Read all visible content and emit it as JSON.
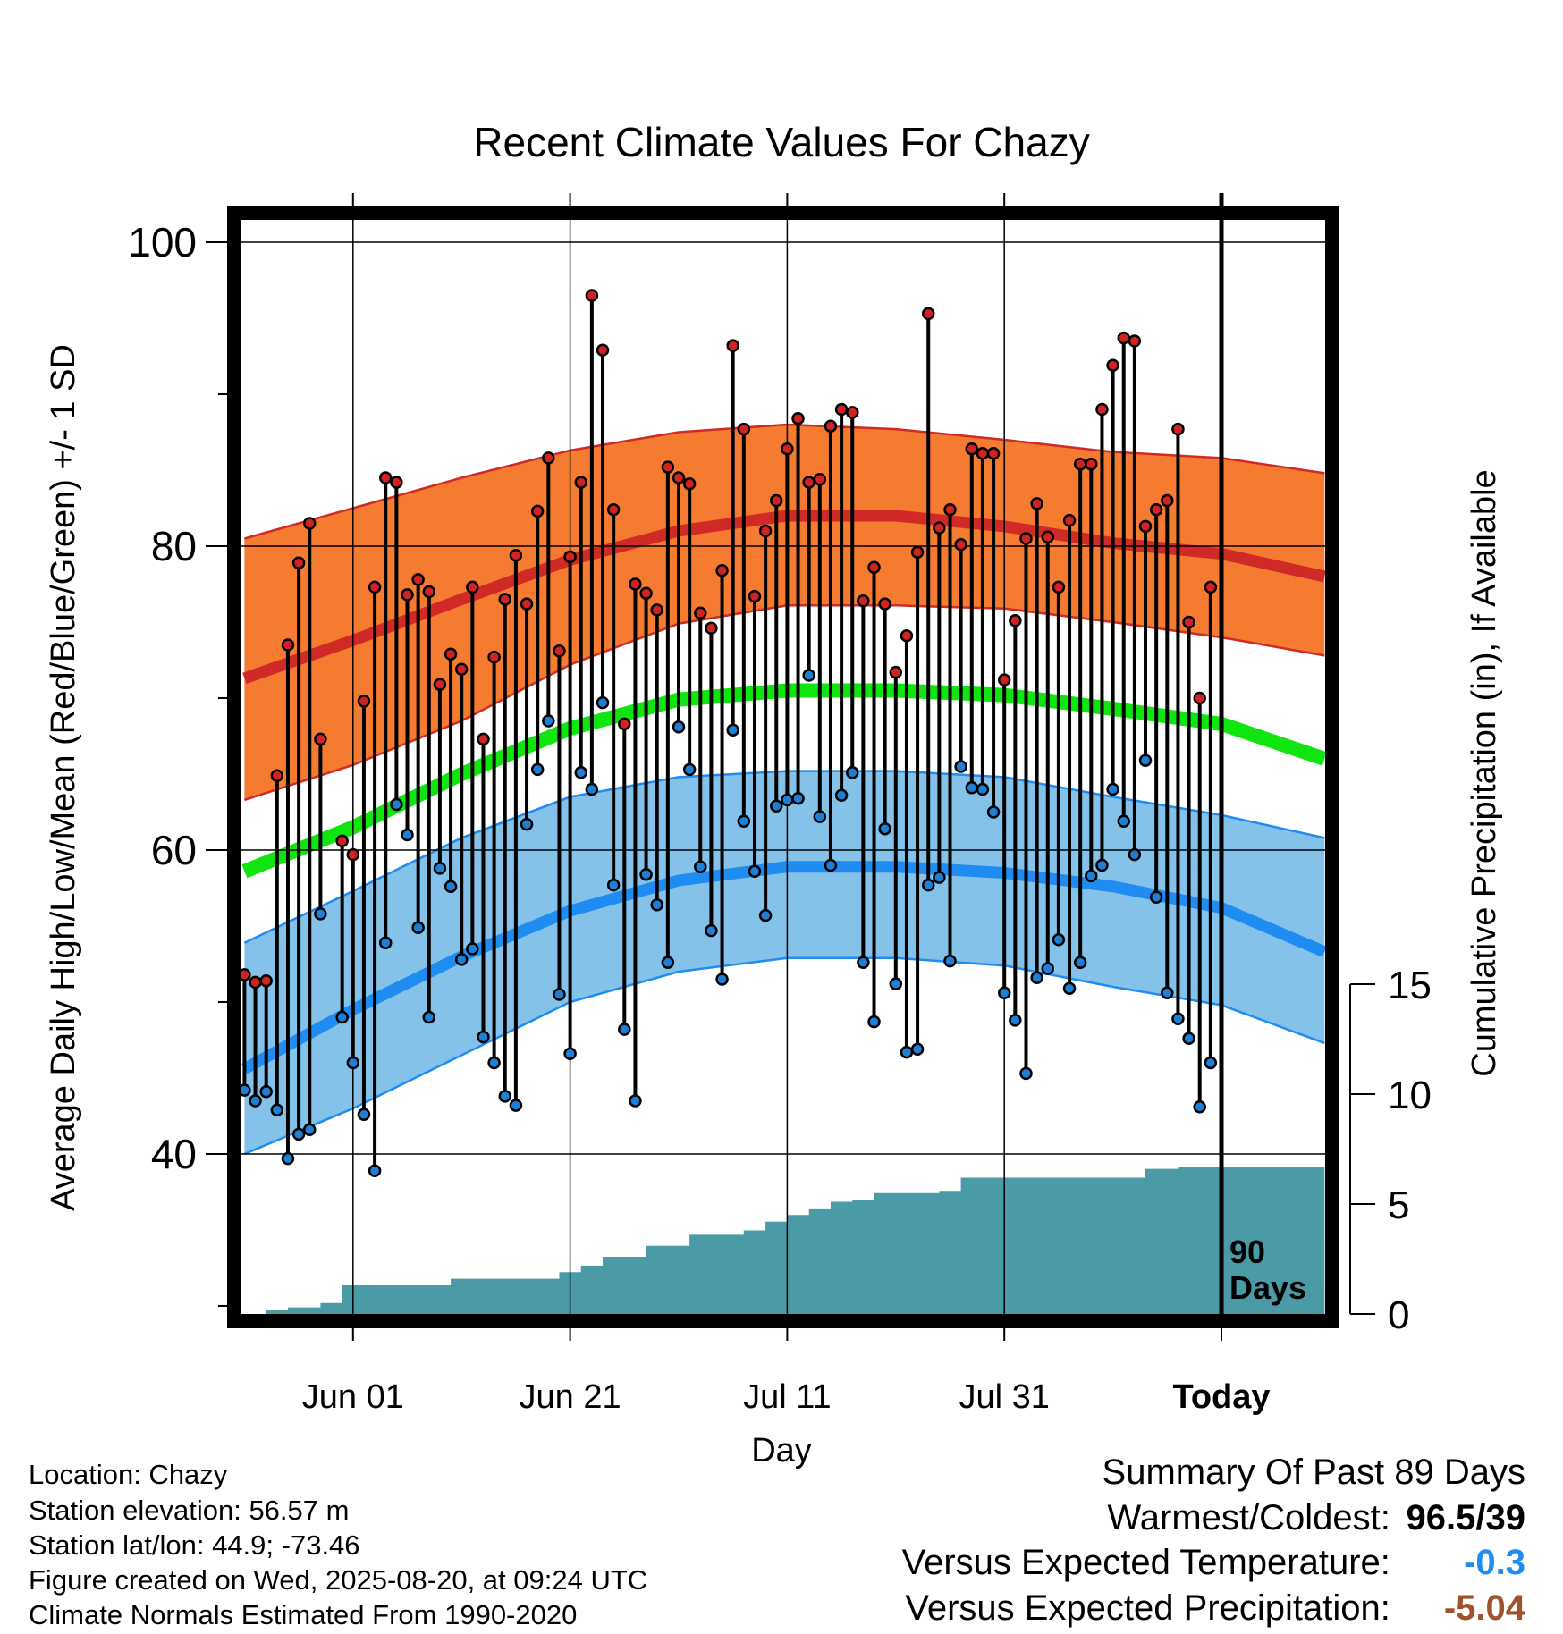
{
  "chart_data": {
    "type": "line",
    "title": "Recent Climate Values For Chazy",
    "xlabel": "Day",
    "ylabel": "Average Daily High/Low/Mean (Red/Blue/Green) +/- 1 SD",
    "y2label": "Cumulative Precipitation (in), If Available",
    "ylim": [
      29,
      101
    ],
    "y2lim": [
      0,
      30
    ],
    "y_ticks": [
      "40",
      "60",
      "80",
      "100"
    ],
    "y2_ticks": [
      "0",
      "5",
      "10",
      "15"
    ],
    "x_tick_labels": [
      "Jun 01",
      "Jun 21",
      "Jul 11",
      "Jul 31",
      "Today"
    ],
    "x_tick_days": [
      -80,
      -60,
      -40,
      -20,
      0
    ],
    "xlim": [
      -90,
      9.5
    ],
    "today_marker": {
      "day": 0,
      "label_line1": "90",
      "label_line2": "Days"
    },
    "grid": true,
    "colors": {
      "high_band": "#f47b30",
      "high_line": "#d02a27",
      "low_band": "#85c2ea",
      "low_line": "#1e8cf0",
      "band_edge_high": "#d02a27",
      "band_edge_low": "#1e8cf0",
      "mean_line": "#10e510",
      "precip": "#4a9ba5",
      "high_dot": "#d32222",
      "low_dot": "#1f7fd6"
    },
    "normals": {
      "days": [
        -90,
        -80,
        -70,
        -60,
        -50,
        -40,
        -30,
        -20,
        -10,
        0,
        9.5
      ],
      "high_mean": [
        71.3,
        73.8,
        76.5,
        79.1,
        81.0,
        82.0,
        82.0,
        81.3,
        80.2,
        79.5,
        78.0
      ],
      "high_upper": [
        80.5,
        82.5,
        84.5,
        86.3,
        87.5,
        88.0,
        87.7,
        87.0,
        86.2,
        85.8,
        84.8
      ],
      "high_lower": [
        63.3,
        65.6,
        68.5,
        72.2,
        74.9,
        76.1,
        76.1,
        75.9,
        75.0,
        74.0,
        72.8
      ],
      "mean": [
        58.6,
        61.5,
        65.0,
        68.0,
        69.9,
        70.5,
        70.5,
        70.2,
        69.3,
        68.3,
        66.0
      ],
      "low_mean": [
        45.6,
        49.5,
        53.0,
        56.0,
        58.0,
        58.9,
        58.9,
        58.5,
        57.6,
        56.2,
        53.3
      ],
      "low_upper": [
        53.9,
        57.3,
        60.8,
        63.5,
        64.8,
        65.2,
        65.2,
        64.8,
        63.5,
        62.3,
        60.8
      ],
      "low_lower": [
        40.0,
        43.0,
        46.5,
        50.0,
        52.0,
        52.9,
        52.9,
        52.4,
        51.0,
        49.8,
        47.3
      ]
    },
    "days": [
      -90,
      -89,
      -88,
      -87,
      -86,
      -85,
      -84,
      -83,
      -82,
      -81,
      -80,
      -79,
      -78,
      -77,
      -76,
      -75,
      -74,
      -73,
      -72,
      -71,
      -70,
      -69,
      -68,
      -67,
      -66,
      -65,
      -64,
      -63,
      -62,
      -61,
      -60,
      -59,
      -58,
      -57,
      -56,
      -55,
      -54,
      -53,
      -52,
      -51,
      -50,
      -49,
      -48,
      -47,
      -46,
      -45,
      -44,
      -43,
      -42,
      -41,
      -40,
      -39,
      -38,
      -37,
      -36,
      -35,
      -34,
      -33,
      -32,
      -31,
      -30,
      -29,
      -28,
      -27,
      -26,
      -25,
      -24,
      -23,
      -22,
      -21,
      -20,
      -19,
      -18,
      -17,
      -16,
      -15,
      -14,
      -13,
      -12,
      -11,
      -10,
      -9,
      -8,
      -7,
      -6,
      -5,
      -4,
      -3,
      -2,
      -1
    ],
    "highs": [
      51.8,
      51.3,
      51.4,
      64.9,
      73.5,
      78.9,
      81.5,
      67.3,
      null,
      60.6,
      59.7,
      69.8,
      77.3,
      84.5,
      84.2,
      76.8,
      77.8,
      77.0,
      70.9,
      72.9,
      71.9,
      77.3,
      67.3,
      72.7,
      76.5,
      79.4,
      76.2,
      82.3,
      85.8,
      73.1,
      79.3,
      84.2,
      96.5,
      92.9,
      82.4,
      68.3,
      77.5,
      76.9,
      75.8,
      85.2,
      84.5,
      84.1,
      75.6,
      74.6,
      78.4,
      93.2,
      87.7,
      76.7,
      81.0,
      83.0,
      86.4,
      88.4,
      84.2,
      84.4,
      87.9,
      89.0,
      88.8,
      76.4,
      78.6,
      76.2,
      71.7,
      74.1,
      79.6,
      95.3,
      81.2,
      82.4,
      80.1,
      86.4,
      86.1,
      86.1,
      71.2,
      75.1,
      80.5,
      82.8,
      80.6,
      77.3,
      81.7,
      85.4,
      85.4,
      89.0,
      91.9,
      93.7,
      93.5,
      81.3,
      82.4,
      83.0,
      87.7,
      75.0,
      70.0,
      77.3
    ],
    "lows": [
      44.2,
      43.5,
      44.1,
      42.9,
      39.7,
      41.3,
      41.6,
      55.8,
      null,
      49.0,
      46.0,
      42.6,
      38.9,
      53.9,
      63.0,
      61.0,
      54.9,
      49.0,
      58.8,
      57.6,
      52.8,
      53.5,
      47.7,
      46.0,
      43.8,
      43.2,
      61.7,
      65.3,
      68.5,
      50.5,
      46.6,
      65.1,
      64.0,
      69.7,
      57.7,
      48.2,
      43.5,
      58.4,
      56.4,
      52.6,
      68.1,
      65.3,
      58.9,
      54.7,
      51.5,
      67.9,
      61.9,
      58.6,
      55.7,
      62.9,
      63.3,
      63.4,
      71.5,
      62.2,
      59.0,
      63.6,
      65.1,
      52.6,
      48.7,
      61.4,
      51.2,
      46.7,
      46.9,
      57.7,
      58.2,
      52.7,
      65.5,
      64.1,
      64.0,
      62.5,
      50.6,
      48.8,
      45.3,
      51.6,
      52.2,
      54.1,
      50.9,
      52.6,
      58.3,
      59.0,
      64.0,
      61.9,
      59.7,
      65.9,
      56.9,
      50.6,
      48.9,
      47.6,
      43.1,
      46.0
    ],
    "precip_steps": [
      [
        -90,
        0.0
      ],
      [
        -88,
        0.2
      ],
      [
        -86,
        0.3
      ],
      [
        -83,
        0.5
      ],
      [
        -81,
        1.3
      ],
      [
        -73,
        1.3
      ],
      [
        -71,
        1.6
      ],
      [
        -63,
        1.6
      ],
      [
        -61,
        1.9
      ],
      [
        -59,
        2.2
      ],
      [
        -57,
        2.6
      ],
      [
        -53,
        3.1
      ],
      [
        -49,
        3.6
      ],
      [
        -44,
        3.8
      ],
      [
        -42,
        4.2
      ],
      [
        -40,
        4.5
      ],
      [
        -38,
        4.8
      ],
      [
        -36,
        5.1
      ],
      [
        -34,
        5.2
      ],
      [
        -32,
        5.5
      ],
      [
        -26,
        5.6
      ],
      [
        -24,
        6.2
      ],
      [
        -5,
        6.2
      ],
      [
        -7,
        6.2
      ],
      [
        -7,
        6.6
      ],
      [
        -4,
        6.7
      ],
      [
        0,
        6.7
      ],
      [
        9.5,
        6.7
      ]
    ]
  },
  "summary": {
    "title": "Summary Of Past 89 Days",
    "warmest_label": "Warmest/Coldest:",
    "warmest_value": "96.5/39",
    "temp_label": "Versus Expected Temperature:",
    "temp_value": "-0.3",
    "temp_color": "#1e8cf0",
    "precip_label": "Versus Expected Precipitation:",
    "precip_value": "-5.04",
    "precip_color": "#a0522d"
  },
  "info": {
    "location": "Location: Chazy",
    "elevation": "Station elevation: 56.57 m",
    "latlon": "Station lat/lon: 44.9; -73.46",
    "created": "Figure created on Wed, 2025-08-20, at 09:24 UTC",
    "normals": "Climate Normals Estimated From 1990-2020"
  }
}
